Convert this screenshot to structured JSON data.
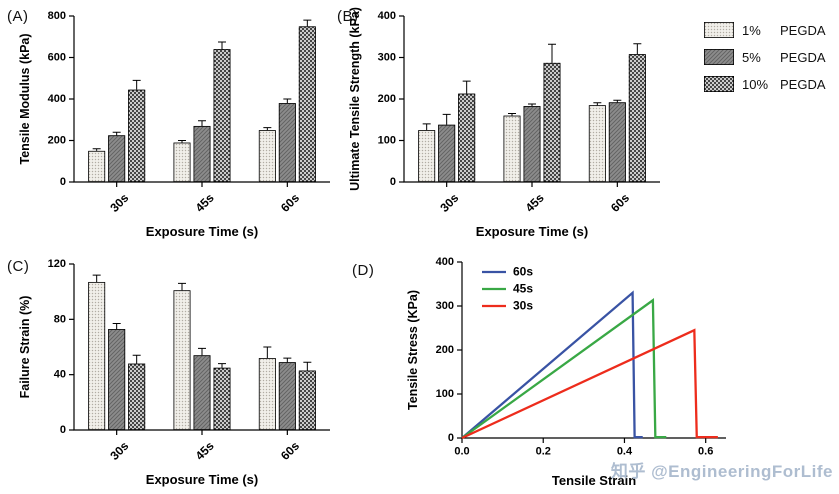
{
  "watermark": "知乎 @EngineeringForLife",
  "legend": {
    "items": [
      {
        "pct": "1%",
        "name": "PEGDA",
        "pattern": "stipple"
      },
      {
        "pct": "5%",
        "name": "PEGDA",
        "pattern": "gray-hatch"
      },
      {
        "pct": "10%",
        "name": "PEGDA",
        "pattern": "checker"
      }
    ]
  },
  "chart_data": [
    {
      "id": "A",
      "panel_label": "(A)",
      "type": "bar",
      "xlabel": "Exposure Time (s)",
      "ylabel": "Tensile Modulus (kPa)",
      "ylim": [
        0,
        800
      ],
      "yticks": [
        0,
        200,
        400,
        600,
        800
      ],
      "categories": [
        "30s",
        "45s",
        "60s"
      ],
      "series": [
        {
          "name": "1% PEGDA",
          "pattern": "stipple",
          "values": [
            150,
            190,
            250
          ],
          "errors": [
            10,
            10,
            12
          ]
        },
        {
          "name": "5% PEGDA",
          "pattern": "gray-hatch",
          "values": [
            225,
            270,
            380
          ],
          "errors": [
            15,
            25,
            20
          ]
        },
        {
          "name": "10% PEGDA",
          "pattern": "checker",
          "values": [
            445,
            640,
            750
          ],
          "errors": [
            45,
            35,
            30
          ]
        }
      ]
    },
    {
      "id": "B",
      "panel_label": "(B)",
      "type": "bar",
      "xlabel": "Exposure Time (s)",
      "ylabel": "Ultimate Tensile Strength (kPa)",
      "ylim": [
        0,
        400
      ],
      "yticks": [
        0,
        100,
        200,
        300,
        400
      ],
      "categories": [
        "30s",
        "45s",
        "60s"
      ],
      "series": [
        {
          "name": "1% PEGDA",
          "pattern": "stipple",
          "values": [
            125,
            160,
            185
          ],
          "errors": [
            15,
            5,
            6
          ]
        },
        {
          "name": "5% PEGDA",
          "pattern": "gray-hatch",
          "values": [
            138,
            183,
            192
          ],
          "errors": [
            25,
            5,
            5
          ]
        },
        {
          "name": "10% PEGDA",
          "pattern": "checker",
          "values": [
            213,
            287,
            308
          ],
          "errors": [
            30,
            45,
            25
          ]
        }
      ]
    },
    {
      "id": "C",
      "panel_label": "(C)",
      "type": "bar",
      "xlabel": "Exposure Time (s)",
      "ylabel": "Failure Strain (%)",
      "ylim": [
        0,
        120
      ],
      "yticks": [
        0,
        40,
        80,
        120
      ],
      "categories": [
        "30s",
        "45s",
        "60s"
      ],
      "series": [
        {
          "name": "1% PEGDA",
          "pattern": "stipple",
          "values": [
            107,
            101,
            52
          ],
          "errors": [
            5,
            5,
            8
          ]
        },
        {
          "name": "5% PEGDA",
          "pattern": "gray-hatch",
          "values": [
            73,
            54,
            49
          ],
          "errors": [
            4,
            5,
            3
          ]
        },
        {
          "name": "10% PEGDA",
          "pattern": "checker",
          "values": [
            48,
            45,
            43
          ],
          "errors": [
            6,
            3,
            6
          ]
        }
      ]
    },
    {
      "id": "D",
      "panel_label": "(D)",
      "type": "line",
      "xlabel": "Tensile Strain",
      "ylabel": "Tensile Stress (KPa)",
      "xlim": [
        0,
        0.65
      ],
      "xticks": [
        0,
        0.2,
        0.4,
        0.6
      ],
      "xtick_labels": [
        "0.0",
        "0.2",
        "0.4",
        "0.6"
      ],
      "ylim": [
        0,
        400
      ],
      "yticks": [
        0,
        100,
        200,
        300,
        400
      ],
      "legend_position": "top-left",
      "series": [
        {
          "name": "60s",
          "color": "#3953a4",
          "points": [
            [
              0,
              0
            ],
            [
              0.42,
              330
            ],
            [
              0.425,
              2
            ],
            [
              0.445,
              2
            ]
          ]
        },
        {
          "name": "45s",
          "color": "#39a845",
          "points": [
            [
              0,
              0
            ],
            [
              0.47,
              313
            ],
            [
              0.476,
              2
            ],
            [
              0.503,
              2
            ]
          ]
        },
        {
          "name": "30s",
          "color": "#ed2c1c",
          "points": [
            [
              0,
              0
            ],
            [
              0.572,
              245
            ],
            [
              0.578,
              2
            ],
            [
              0.63,
              2
            ]
          ]
        }
      ]
    }
  ]
}
